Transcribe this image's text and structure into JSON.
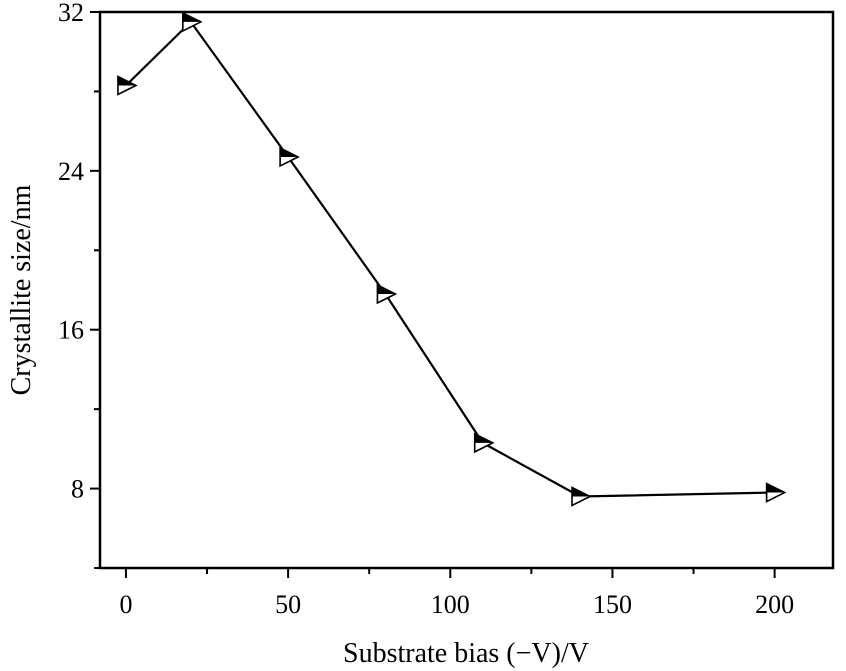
{
  "chart_data": {
    "type": "line",
    "xlabel": "Substrate bias (−V)/V",
    "ylabel": "Crystallite size/nm",
    "xlim": [
      -8,
      218
    ],
    "ylim": [
      4,
      32
    ],
    "xticks": [
      0,
      50,
      100,
      150,
      200
    ],
    "yticks": [
      8,
      16,
      24,
      32
    ],
    "grid": false,
    "legend": "none",
    "marker": "right-pointing half-filled triangle",
    "series": [
      {
        "x": [
          0,
          20,
          50,
          80,
          110,
          140,
          200
        ],
        "y": [
          28.3,
          31.5,
          24.7,
          17.8,
          10.3,
          7.6,
          7.8
        ]
      }
    ]
  }
}
